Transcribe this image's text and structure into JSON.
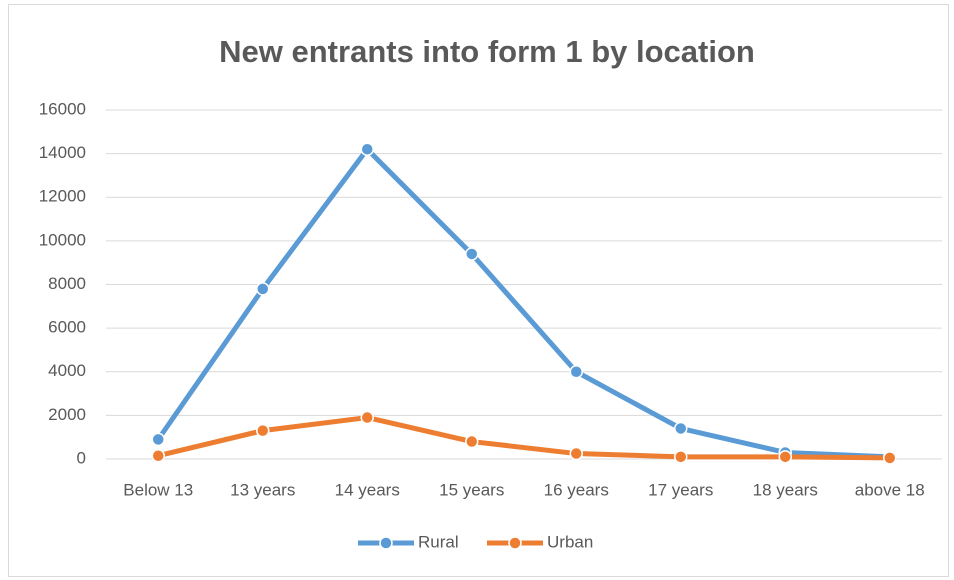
{
  "chart_data": {
    "type": "line",
    "title": "New entrants into form 1 by location",
    "categories": [
      "Below 13",
      "13 years",
      "14 years",
      "15 years",
      "16 years",
      "17 years",
      "18 years",
      "above 18"
    ],
    "series": [
      {
        "name": "Rural",
        "color": "#5b9bd5",
        "values": [
          900,
          7800,
          14200,
          9400,
          4000,
          1400,
          300,
          100
        ]
      },
      {
        "name": "Urban",
        "color": "#ed7d31",
        "values": [
          150,
          1300,
          1900,
          800,
          250,
          100,
          100,
          50
        ]
      }
    ],
    "ylim": [
      0,
      16000
    ],
    "yticks": [
      0,
      2000,
      4000,
      6000,
      8000,
      10000,
      12000,
      14000,
      16000
    ],
    "grid": true,
    "legend": "bottom"
  }
}
